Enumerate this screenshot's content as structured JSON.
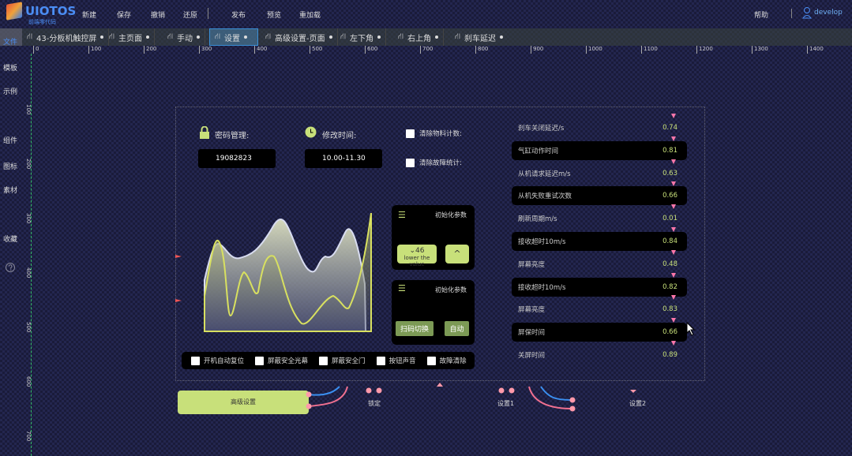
{
  "app": {
    "logo": "UIOTOS",
    "logo_sub": "前端零代码"
  },
  "toolbar": {
    "items": [
      "新建",
      "保存",
      "撤销",
      "还原",
      "发布",
      "预览",
      "重加载"
    ],
    "help": "帮助",
    "user": "develop"
  },
  "tabs": [
    {
      "label": "43-分板机触控屏",
      "selected": false
    },
    {
      "label": "主页面",
      "selected": false
    },
    {
      "label": "手动",
      "selected": false
    },
    {
      "label": "设置",
      "selected": true
    },
    {
      "label": "高级设置-页面",
      "selected": false
    },
    {
      "label": "左下角",
      "selected": false
    },
    {
      "label": "右上角",
      "selected": false
    },
    {
      "label": "刹车延迟",
      "selected": false
    }
  ],
  "sidebar": {
    "items": [
      "文件",
      "模板",
      "示例",
      "组件",
      "图标",
      "素材",
      "收藏"
    ],
    "active": "文件"
  },
  "ruler": {
    "h": [
      "0",
      "100",
      "200",
      "300",
      "400",
      "500",
      "600",
      "700",
      "800",
      "900",
      "1000",
      "1100",
      "1200",
      "1300",
      "1400"
    ],
    "v": [
      "100",
      "200",
      "300",
      "400",
      "500",
      "600",
      "700"
    ]
  },
  "form": {
    "password_label": "密码管理:",
    "password_value": "19082823",
    "time_label": "修改时间:",
    "time_value": "10.00-11.30",
    "clear_material": "清除物料计数:",
    "clear_fault": "清除故障统计:"
  },
  "panel1": {
    "title": "初始化参数",
    "down_value": "46",
    "down_hint": "lower the value",
    "up_label": "^"
  },
  "panel2": {
    "title": "初始化参数",
    "scan_btn": "扫码切换",
    "auto_btn": "自动"
  },
  "params": [
    {
      "label": "刹车关闭延迟/s",
      "value": "0.74"
    },
    {
      "label": "气缸动作时间",
      "value": "0.81"
    },
    {
      "label": "从机请求延迟m/s",
      "value": "0.63"
    },
    {
      "label": "从机失败重试次数",
      "value": "0.66"
    },
    {
      "label": "刷新周期m/s",
      "value": "0.01"
    },
    {
      "label": "接收超时10m/s",
      "value": "0.84"
    },
    {
      "label": "屏幕亮度",
      "value": "0.48"
    },
    {
      "label": "接收超时10m/s",
      "value": "0.82"
    },
    {
      "label": "屏幕亮度",
      "value": "0.83"
    },
    {
      "label": "屏保时间",
      "value": "0.66"
    },
    {
      "label": "关屏时间",
      "value": "0.89"
    }
  ],
  "checks": [
    "开机自动复位",
    "屏蔽安全光幕",
    "屏蔽安全门",
    "按钮声音",
    "故障清除"
  ],
  "nodes": {
    "advanced": "高级设置",
    "lock": "锁定",
    "settings1": "设置1",
    "settings2": "设置2"
  },
  "colors": {
    "accent": "#c8e07a",
    "brand": "#4b8ef5",
    "tab_selected": "#3a8fd6"
  }
}
